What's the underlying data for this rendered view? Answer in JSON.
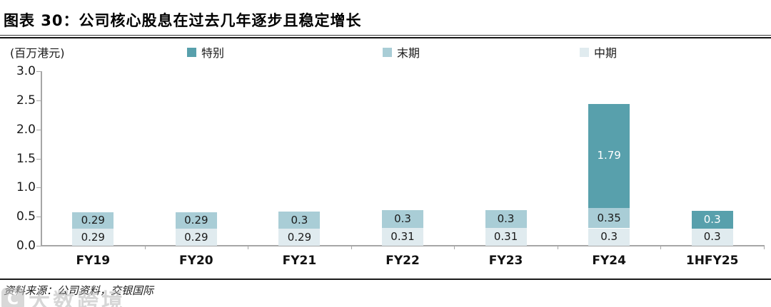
{
  "header": {
    "title": "图表 30：公司核心股息在过去几年逐步且稳定增长",
    "unit_label": "(百万港元)"
  },
  "legend": [
    {
      "label": "特别",
      "color": "#58a0ac"
    },
    {
      "label": "末期",
      "color": "#a9cdd6"
    },
    {
      "label": "中期",
      "color": "#e0ebef"
    }
  ],
  "chart_data": {
    "type": "bar",
    "stacked": true,
    "title": "图表 30：公司核心股息在过去几年逐步且稳定增长",
    "ylabel": "(百万港元)",
    "xlabel": "",
    "grid": false,
    "legend_position": "top",
    "ylim": [
      0,
      3.0
    ],
    "yticks": [
      "3.0",
      "2.5",
      "2.0",
      "1.5",
      "1.0",
      "0.5",
      "0.0"
    ],
    "categories": [
      "FY19",
      "FY20",
      "FY21",
      "FY22",
      "FY23",
      "FY24",
      "1HFY25"
    ],
    "series": [
      {
        "name": "中期",
        "color": "#e0ebef",
        "label_color": "#1a1a1a",
        "values": [
          0.29,
          0.29,
          0.29,
          0.31,
          0.31,
          0.3,
          0.3
        ],
        "labels": [
          "0.29",
          "0.29",
          "0.29",
          "0.31",
          "0.31",
          "0.3",
          "0.3"
        ]
      },
      {
        "name": "末期",
        "color": "#a9cdd6",
        "label_color": "#1a1a1a",
        "values": [
          0.29,
          0.29,
          0.3,
          0.3,
          0.3,
          0.35,
          null
        ],
        "labels": [
          "0.29",
          "0.29",
          "0.3",
          "0.3",
          "0.3",
          "0.35",
          ""
        ]
      },
      {
        "name": "特别",
        "color": "#58a0ac",
        "label_color": "#ffffff",
        "values": [
          null,
          null,
          null,
          null,
          null,
          1.79,
          0.3
        ],
        "labels": [
          "",
          "",
          "",
          "",
          "",
          "1.79",
          "0.3"
        ]
      }
    ]
  },
  "footer": {
    "source": "资料来源：公司资料，交银国际",
    "watermark_logo": "C",
    "watermark": "大数跨境"
  }
}
